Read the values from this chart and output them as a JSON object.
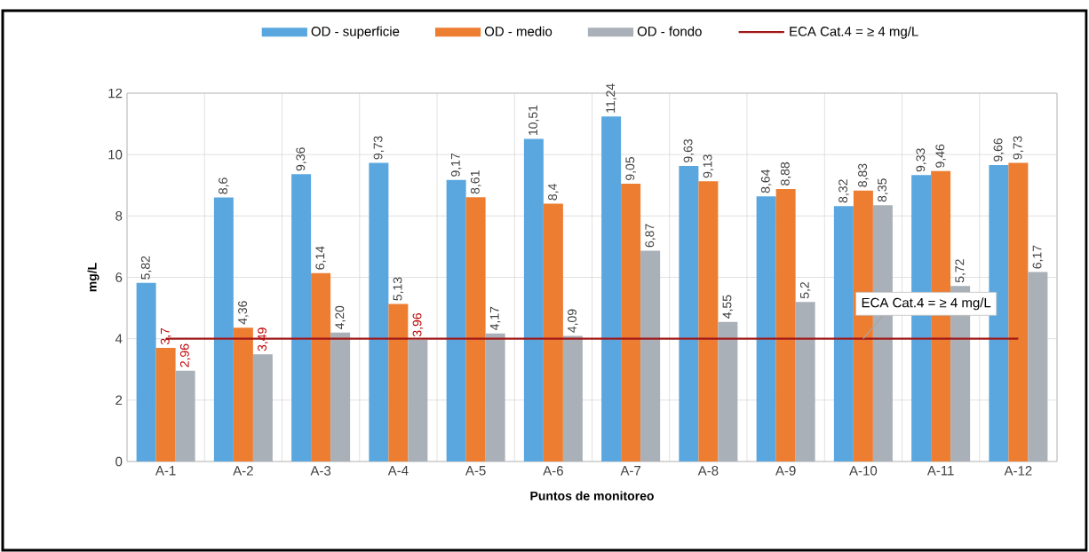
{
  "chart_data": {
    "type": "bar",
    "xlabel": "Puntos de monitoreo",
    "ylabel": "mg/L",
    "categories": [
      "A-1",
      "A-2",
      "A-3",
      "A-4",
      "A-5",
      "A-6",
      "A-7",
      "A-8",
      "A-9",
      "A-10",
      "A-11",
      "A-12"
    ],
    "series": [
      {
        "name": "OD - superficie",
        "color": "#5aa7e0",
        "values": [
          5.82,
          8.6,
          9.36,
          9.73,
          9.17,
          10.51,
          11.24,
          9.63,
          8.64,
          8.32,
          9.33,
          9.66
        ],
        "value_labels": [
          "5,82",
          "8,6",
          "9,36",
          "9,73",
          "9,17",
          "10,51",
          "11,24",
          "9,63",
          "8,64",
          "8,32",
          "9,33",
          "9,66"
        ]
      },
      {
        "name": "OD - medio",
        "color": "#ed7d31",
        "values": [
          3.7,
          4.36,
          6.14,
          5.13,
          8.61,
          8.4,
          9.05,
          9.13,
          8.88,
          8.83,
          9.46,
          9.73
        ],
        "value_labels": [
          "3,7",
          "4,36",
          "6,14",
          "5,13",
          "8,61",
          "8,4",
          "9,05",
          "9,13",
          "8,88",
          "8,83",
          "9,46",
          "9,73"
        ]
      },
      {
        "name": "OD - fondo",
        "color": "#a9b0b8",
        "values": [
          2.96,
          3.49,
          4.2,
          3.96,
          4.17,
          4.09,
          6.87,
          4.55,
          5.2,
          8.35,
          5.72,
          6.17
        ],
        "value_labels": [
          "2,96",
          "3,49",
          "4,20",
          "3,96",
          "4,17",
          "4,09",
          "6,87",
          "4,55",
          "5,2",
          "8,35",
          "5,72",
          "6,17"
        ]
      },
      {
        "name": "ECA Cat.4 = ≥  4 mg/L",
        "type": "line",
        "color": "#a01818",
        "values": [
          4,
          4,
          4,
          4,
          4,
          4,
          4,
          4,
          4,
          4,
          4,
          4
        ]
      }
    ],
    "annotations": [
      {
        "text": "ECA Cat.4 = ≥  4 mg/L",
        "x": "A-10",
        "y": 4
      }
    ],
    "ylim": [
      0,
      12
    ],
    "yticks": [
      0,
      2,
      4,
      6,
      8,
      10,
      12
    ],
    "grid": true,
    "legend": "top"
  }
}
